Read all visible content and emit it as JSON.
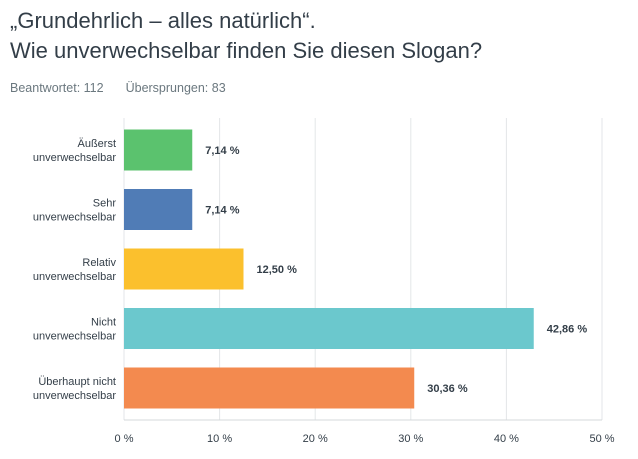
{
  "question": {
    "line1": "„Grundehrlich – alles natürlich“.",
    "line2": "Wie unverwechselbar finden Sie diesen Slogan?"
  },
  "stats": {
    "answered": "Beantwortet: 112",
    "skipped": "Übersprungen: 83"
  },
  "chart_data": {
    "type": "bar",
    "orientation": "horizontal",
    "title": "„Grundehrlich – alles natürlich“. Wie unverwechselbar finden Sie diesen Slogan?",
    "xlabel": "",
    "ylabel": "",
    "xlim": [
      0,
      50
    ],
    "grid": true,
    "categories": [
      [
        "Äußerst",
        "unverwechselbar"
      ],
      [
        "Sehr",
        "unverwechselbar"
      ],
      [
        "Relativ",
        "unverwechselbar"
      ],
      [
        "Nicht",
        "unverwechselbar"
      ],
      [
        "Überhaupt nicht",
        "unverwechselbar"
      ]
    ],
    "values": [
      7.14,
      7.14,
      12.5,
      42.86,
      30.36
    ],
    "value_labels": [
      "7,14 %",
      "7,14 %",
      "12,50 %",
      "42,86 %",
      "30,36 %"
    ],
    "colors": [
      "#5bc26e",
      "#507cb6",
      "#fbc02d",
      "#6bc8cd",
      "#f38a4f"
    ],
    "ticks": [
      0,
      10,
      20,
      30,
      40,
      50
    ],
    "tick_labels": [
      "0 %",
      "10 %",
      "20 %",
      "30 %",
      "40 %",
      "50 %"
    ]
  }
}
